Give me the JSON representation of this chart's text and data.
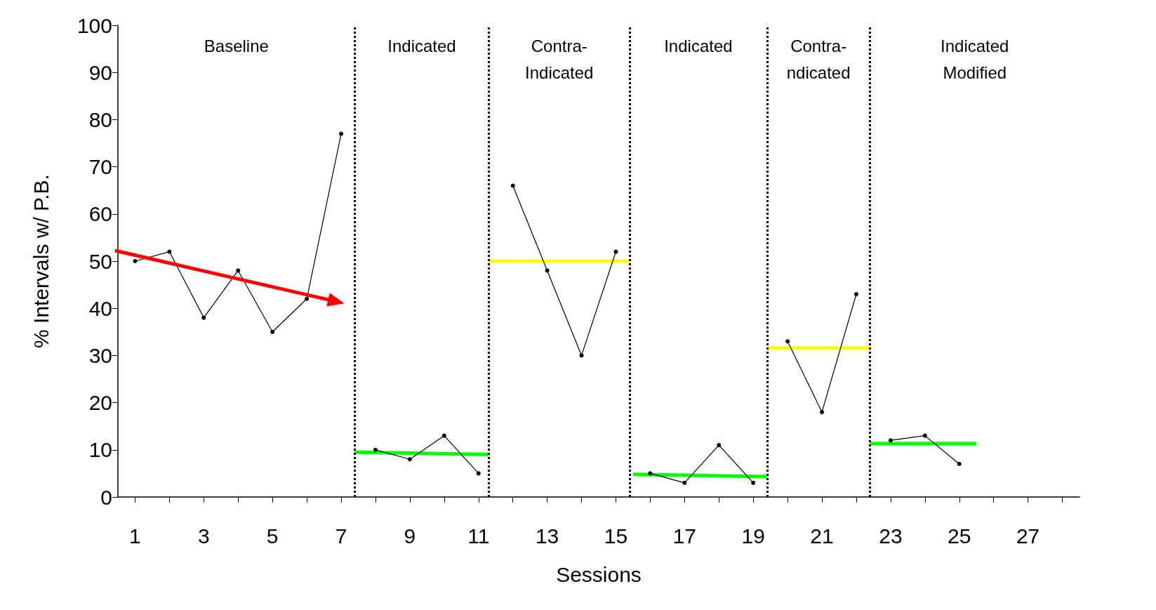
{
  "chart_data": {
    "type": "line",
    "xlabel": "Sessions",
    "ylabel": "% Intervals w/ P.B.",
    "xlim": [
      0.5,
      28.5
    ],
    "xticks": [
      1,
      {
        "value": 2,
        "label": null
      },
      3,
      {
        "value": 4,
        "label": null
      },
      5,
      {
        "value": 6,
        "label": null
      },
      7,
      {
        "value": 8,
        "label": null
      },
      9,
      {
        "value": 10,
        "label": null
      },
      11,
      {
        "value": 12,
        "label": null
      },
      13,
      {
        "value": 14,
        "label": null
      },
      15,
      {
        "value": 16,
        "label": null
      },
      17,
      {
        "value": 18,
        "label": null
      },
      19,
      {
        "value": 20,
        "label": null
      },
      21,
      {
        "value": 22,
        "label": null
      },
      23,
      {
        "value": 24,
        "label": null
      },
      25,
      {
        "value": 26,
        "label": null
      },
      27,
      {
        "value": 28,
        "label": null
      }
    ],
    "ylim": [
      0,
      100
    ],
    "yticks": [
      0,
      10,
      20,
      30,
      40,
      50,
      60,
      70,
      80,
      90,
      100
    ],
    "grid": false,
    "marker": "circle",
    "line_style": "solid",
    "series": [
      {
        "color": "#000000",
        "x": [
          1,
          2,
          3,
          4,
          5,
          6,
          7
        ],
        "values": [
          50,
          52,
          38,
          48,
          35,
          42,
          77
        ]
      },
      {
        "color": "#000000",
        "x": [
          8,
          9,
          10,
          11
        ],
        "values": [
          10,
          8,
          13,
          5
        ]
      },
      {
        "color": "#000000",
        "x": [
          12,
          13,
          14,
          15
        ],
        "values": [
          66,
          48,
          30,
          52
        ]
      },
      {
        "color": "#000000",
        "x": [
          16,
          17,
          18,
          19
        ],
        "values": [
          5,
          3,
          11,
          3
        ]
      },
      {
        "color": "#000000",
        "x": [
          20,
          21,
          22
        ],
        "values": [
          33,
          18,
          43
        ]
      },
      {
        "color": "#000000",
        "x": [
          23,
          24,
          25
        ],
        "values": [
          12,
          13,
          7
        ]
      },
      {
        "color": "#00ff00",
        "x": [
          7.4,
          11.3
        ],
        "values": [
          9.5,
          9
        ],
        "marker": "none"
      },
      {
        "color": "#ffff00",
        "x": [
          11.3,
          15.4
        ],
        "values": [
          50,
          50
        ],
        "marker": "none"
      },
      {
        "color": "#00ff00",
        "x": [
          15.5,
          19.4
        ],
        "values": [
          4.8,
          4.3
        ],
        "marker": "none"
      },
      {
        "color": "#ffff00",
        "x": [
          19.4,
          22.4
        ],
        "values": [
          31.6,
          31.6
        ],
        "marker": "none"
      },
      {
        "color": "#00ff00",
        "x": [
          22.4,
          25.5
        ],
        "values": [
          11.3,
          11.3
        ],
        "marker": "none"
      }
    ],
    "ref_lines": [
      {
        "axis": "x",
        "value": 7.4,
        "color": "#000000",
        "line_style": "dotted"
      },
      {
        "axis": "x",
        "value": 11.3,
        "color": "#000000",
        "line_style": "dotted"
      },
      {
        "axis": "x",
        "value": 15.4,
        "color": "#000000",
        "line_style": "dotted"
      },
      {
        "axis": "x",
        "value": 19.4,
        "color": "#000000",
        "line_style": "dotted"
      },
      {
        "axis": "x",
        "value": 22.4,
        "color": "#000000",
        "line_style": "dotted"
      }
    ],
    "annotations": [
      "Baseline",
      "Indicated",
      "Contra-\nIndicated",
      "Indicated",
      "Contra-\nndicated",
      "Indicated\nModified"
    ]
  }
}
